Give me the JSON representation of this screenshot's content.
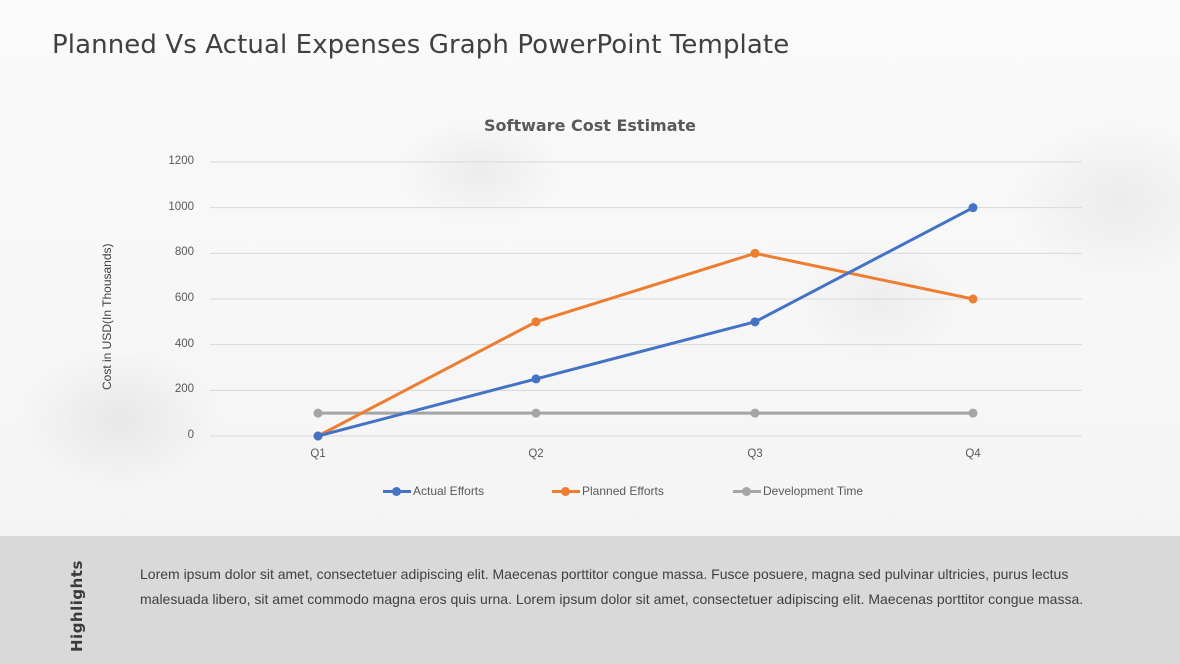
{
  "page": {
    "title": "Planned Vs Actual Expenses Graph PowerPoint Template"
  },
  "chart": {
    "title": "Software Cost Estimate",
    "ylabel": "Cost in USD(In Thousands)",
    "yticks": [
      "1200",
      "1000",
      "800",
      "600",
      "400",
      "200",
      "0"
    ],
    "xticks": [
      "Q1",
      "Q2",
      "Q3",
      "Q4"
    ],
    "legend": [
      {
        "label": "Actual Efforts",
        "color": "#4472C4"
      },
      {
        "label": "Planned Efforts",
        "color": "#ED7D31"
      },
      {
        "label": "Development Time",
        "color": "#A5A5A5"
      }
    ]
  },
  "chart_data": {
    "type": "line",
    "title": "Software Cost Estimate",
    "xlabel": "",
    "ylabel": "Cost in USD(In Thousands)",
    "categories": [
      "Q1",
      "Q2",
      "Q3",
      "Q4"
    ],
    "series": [
      {
        "name": "Actual Efforts",
        "color": "#4472C4",
        "values": [
          0,
          250,
          500,
          1000
        ]
      },
      {
        "name": "Planned Efforts",
        "color": "#ED7D31",
        "values": [
          0,
          500,
          800,
          600
        ]
      },
      {
        "name": "Development Time",
        "color": "#A5A5A5",
        "values": [
          100,
          100,
          100,
          100
        ]
      }
    ],
    "ylim": [
      0,
      1200
    ],
    "yticks": [
      0,
      200,
      400,
      600,
      800,
      1000,
      1200
    ],
    "grid": true,
    "legend_position": "bottom",
    "markers": true
  },
  "highlights": {
    "label": "Highlights",
    "text": "Lorem ipsum dolor sit amet, consectetuer adipiscing elit. Maecenas porttitor congue massa. Fusce posuere, magna sed pulvinar ultricies, purus lectus malesuada libero, sit amet commodo magna eros quis urna.  Lorem ipsum dolor sit amet, consectetuer adipiscing elit. Maecenas porttitor congue massa."
  }
}
